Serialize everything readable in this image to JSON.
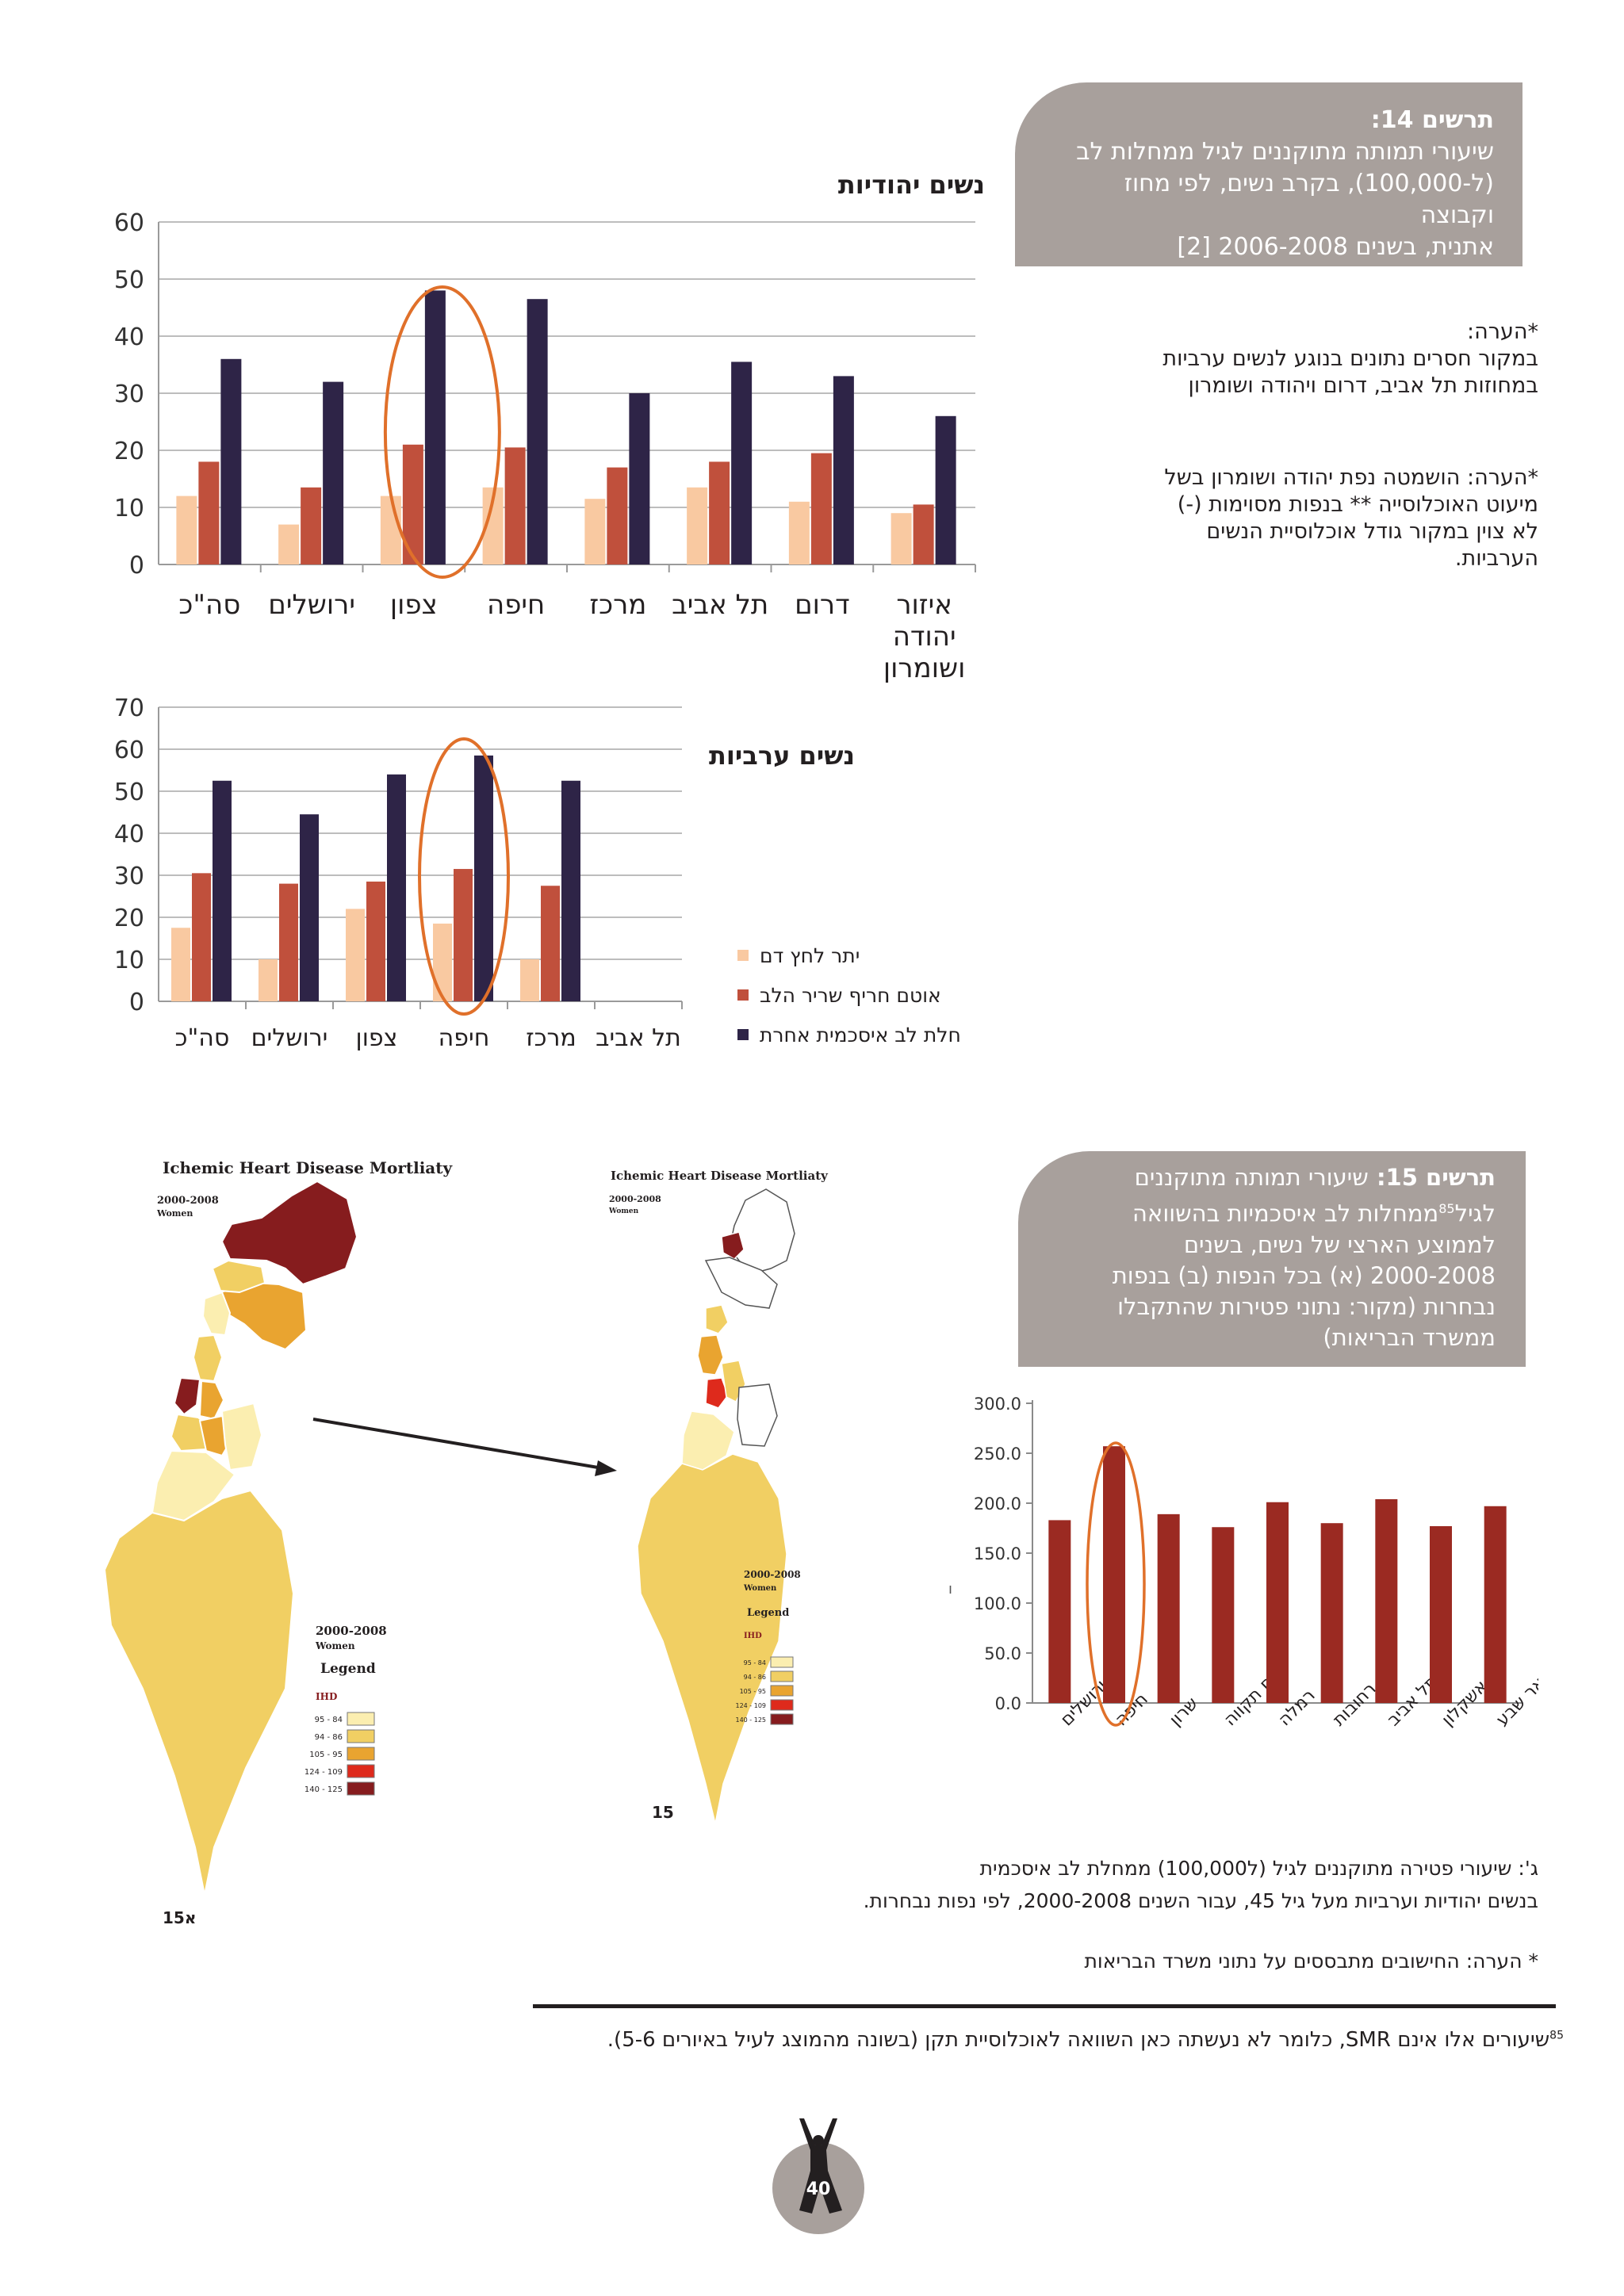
{
  "figure14": {
    "title": "תרשים 14:",
    "caption_lines": [
      "שיעורי תמותה מתוקננים לגיל ממחלות לב",
      "(ל-100,000), בקרב נשים, לפי מחוז וקבוצה",
      "אתנית, בשנים 2006-2008 [2]"
    ],
    "note1_lines": [
      "*הערה:",
      "במקור חסרים נתונים בנוגע לנשים ערביות",
      "במחוזות תל אביב, דרום ויהודה ושומרון"
    ],
    "note2_lines": [
      "*הערה: הושמטה נפת יהודה ושומרון בשל",
      "מיעוט האוכלוסייה ** בנפות מסוימות (-)",
      "לא צוין במקור גודל אוכלוסיית הנשים",
      "הערביות."
    ]
  },
  "chart_data": [
    {
      "type": "bar",
      "title": "נשים יהודיות",
      "categories": [
        "סה\"כ",
        "ירושלים",
        "צפון",
        "חיפה",
        "מרכז",
        "תל אביב",
        "דרום",
        "איזור יהודה ושומרון"
      ],
      "category_lines": [
        [
          "סה\"כ"
        ],
        [
          "ירושלים"
        ],
        [
          "צפון"
        ],
        [
          "חיפה"
        ],
        [
          "מרכז"
        ],
        [
          "תל אביב"
        ],
        [
          "דרום"
        ],
        [
          "איזור",
          "יהודה",
          "ושומרון"
        ]
      ],
      "series": [
        {
          "name": "יתר לחץ דם",
          "color": "#f9c9a1",
          "values": [
            12,
            7,
            12,
            13.5,
            11.5,
            13.5,
            11,
            9
          ]
        },
        {
          "name": "אוטם חריף שריר הלב",
          "color": "#c0503c",
          "values": [
            18,
            13.5,
            21,
            20.5,
            17,
            18,
            19.5,
            10.5
          ]
        },
        {
          "name": "חלת לב איסכמית אחרת",
          "color": "#2e2447",
          "values": [
            36,
            32,
            48,
            46.5,
            30,
            35.5,
            33,
            26
          ]
        }
      ],
      "ylim": [
        0,
        60
      ],
      "yticks": [
        0,
        10,
        20,
        30,
        40,
        50,
        60
      ],
      "grid": true,
      "highlight_category": "צפון",
      "highlight_color": "#e0702a"
    },
    {
      "type": "bar",
      "title": "נשים ערביות",
      "categories": [
        "סה\"כ",
        "ירושלים",
        "צפון",
        "חיפה",
        "מרכז",
        "תל אביב"
      ],
      "series": [
        {
          "name": "יתר לחץ דם",
          "color": "#f9c9a1",
          "values": [
            17.5,
            10,
            22,
            18.5,
            10,
            null
          ]
        },
        {
          "name": "אוטם חריף שריר הלב",
          "color": "#c0503c",
          "values": [
            30.5,
            28,
            28.5,
            31.5,
            27.5,
            null
          ]
        },
        {
          "name": "חלת לב איסכמית אחרת",
          "color": "#2e2447",
          "values": [
            52.5,
            44.5,
            54,
            58.5,
            52.5,
            null
          ]
        }
      ],
      "ylim": [
        0,
        70
      ],
      "yticks": [
        0,
        10,
        20,
        30,
        40,
        50,
        60,
        70
      ],
      "grid": true,
      "legend_position": "right",
      "highlight_category": "חיפה",
      "highlight_color": "#e0702a"
    },
    {
      "type": "bar",
      "categories": [
        "ירושלים",
        "חיפה",
        "שרון",
        "פתח תקווה",
        "רמלה",
        "רחובות",
        "תל אביב",
        "אשקלון",
        "באר שבע"
      ],
      "series": [
        {
          "color": "#9b2a22",
          "values": [
            183,
            257,
            189,
            176,
            201,
            180,
            204,
            177,
            197
          ]
        }
      ],
      "ylim": [
        0,
        300
      ],
      "yticks": [
        "0.0",
        "50.0",
        "100.0",
        "150.0",
        "200.0",
        "250.0",
        "300.0"
      ],
      "grid": false,
      "highlight_category": "חיפה",
      "highlight_color": "#e0702a"
    }
  ],
  "figure15": {
    "title": "תרשים 15:",
    "caption_lines": [
      "שיעורי תמותה מתוקננים",
      "לגיל{85}ממחלות לב איסכמיות בהשוואה",
      "לממוצע הארצי של נשים, בשנים",
      "2000-2008 (א) בכל הנפות (ב) בנפות",
      "נבחרות (מקור: נתוני פטירות שהתקבלו",
      "ממשרד הבריאות)"
    ],
    "superscript": "85",
    "side_mark": "ı",
    "note_g_lines": [
      "ג': שיעורי פטירה מתוקננים לגיל (ל100,000) ממחלת לב איסכמית",
      "בנשים יהודיות וערביות מעל גיל 45, עבור השנים 2000-2008, לפי נפות נבחרות."
    ],
    "note_source": "* הערה: החישובים מתבססים על נתוני משרד הבריאות"
  },
  "maps": {
    "title": "Ichemic Heart Disease Mortliaty",
    "subtitle_years": "2000-2008",
    "subtitle_group": "Women",
    "legend_title": "Legend",
    "legend_sub": "IHD",
    "legend_items": [
      {
        "label": "95 - 84",
        "color": "#fbeeb0"
      },
      {
        "label": "94 - 86",
        "color": "#f1cf63"
      },
      {
        "label": "105 - 95",
        "color": "#e9a430"
      },
      {
        "label": "124 - 109",
        "color": "#de2a1c"
      },
      {
        "label": "140 - 125",
        "color": "#861c1e"
      }
    ],
    "label_a": "15א",
    "label_b": "15"
  },
  "footnote": {
    "number": "85",
    "text": "שיעורים אלו אינם SMR, כלומר לא נעשתה כאן השוואה לאוכלוסיית תקן (בשונה מהמוצג לעיל באיורים 5-6)."
  },
  "page_number": "40"
}
